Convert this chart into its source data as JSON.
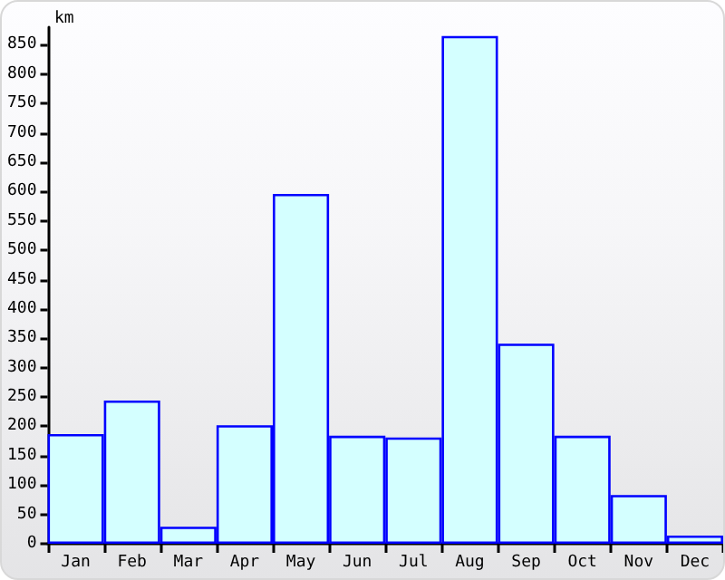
{
  "chart_data": {
    "type": "bar",
    "ylabel": "km",
    "categories": [
      "Jan",
      "Feb",
      "Mar",
      "Apr",
      "May",
      "Jun",
      "Jul",
      "Aug",
      "Sep",
      "Oct",
      "Nov",
      "Dec"
    ],
    "values": [
      187,
      244,
      29,
      202,
      596,
      184,
      181,
      865,
      341,
      184,
      83,
      14
    ],
    "color": "#d4ffff",
    "ylim": [
      0,
      880
    ],
    "yticks": [
      0,
      50,
      100,
      150,
      200,
      250,
      300,
      350,
      400,
      450,
      500,
      550,
      600,
      650,
      700,
      750,
      800,
      850
    ],
    "grid": false
  }
}
